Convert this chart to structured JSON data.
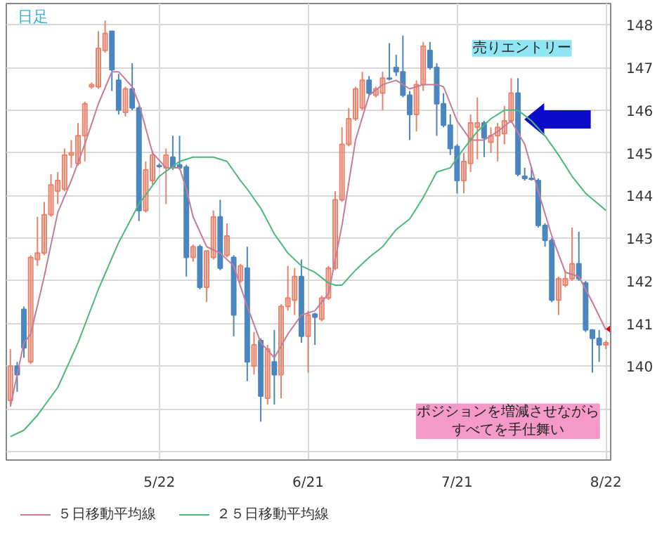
{
  "chart_data": {
    "type": "candlestick",
    "title": "日足",
    "categories": [
      null,
      null,
      null,
      null,
      null,
      null,
      null,
      null,
      null,
      null,
      null,
      null,
      null,
      null,
      null,
      null,
      null,
      null,
      null,
      null,
      null,
      null,
      "5/22",
      null,
      null,
      null,
      null,
      null,
      null,
      null,
      null,
      null,
      null,
      null,
      null,
      null,
      null,
      null,
      null,
      null,
      null,
      null,
      null,
      null,
      "6/21",
      null,
      null,
      null,
      null,
      null,
      null,
      null,
      null,
      null,
      null,
      null,
      null,
      null,
      null,
      null,
      null,
      null,
      null,
      null,
      null,
      null,
      "7/21",
      null,
      null,
      null,
      null,
      null,
      null,
      null,
      null,
      null,
      null,
      null,
      null,
      null,
      null,
      null,
      null,
      null,
      null,
      null,
      null,
      null,
      "8/22"
    ],
    "ohlc": [
      [
        139.2,
        140.4,
        139.1,
        140.0
      ],
      [
        140.0,
        140.1,
        139.4,
        139.8
      ],
      [
        141.33,
        141.4,
        140.2,
        140.43
      ],
      [
        140.1,
        142.6,
        140.05,
        142.55
      ],
      [
        142.5,
        143.5,
        142.35,
        142.65
      ],
      [
        142.65,
        143.85,
        142.6,
        143.55
      ],
      [
        143.55,
        144.5,
        143.5,
        144.25
      ],
      [
        144.1,
        144.55,
        143.8,
        144.35
      ],
      [
        144.15,
        145.1,
        144.1,
        144.95
      ],
      [
        144.95,
        145.3,
        144.65,
        145.0
      ],
      [
        144.75,
        145.7,
        144.7,
        145.4
      ],
      [
        145.4,
        146.2,
        144.8,
        146.15
      ],
      [
        146.55,
        146.65,
        146.5,
        146.6
      ],
      [
        146.55,
        147.85,
        146.5,
        147.45
      ],
      [
        147.4,
        148.1,
        147.35,
        147.8
      ],
      [
        147.85,
        147.85,
        146.45,
        146.95
      ],
      [
        146.7,
        146.85,
        145.9,
        146.0
      ],
      [
        145.95,
        146.55,
        145.85,
        146.5
      ],
      [
        146.5,
        147.1,
        146.0,
        146.05
      ],
      [
        146.05,
        146.1,
        143.4,
        143.65
      ],
      [
        143.65,
        144.8,
        143.6,
        144.6
      ],
      [
        144.35,
        145.05,
        144.25,
        144.95
      ],
      [
        144.7,
        144.75,
        144.65,
        144.68
      ],
      [
        144.65,
        145.1,
        143.8,
        144.95
      ],
      [
        144.9,
        145.4,
        144.6,
        144.67
      ],
      [
        144.72,
        145.4,
        144.6,
        144.65
      ],
      [
        144.67,
        144.72,
        142.1,
        142.55
      ],
      [
        142.55,
        142.85,
        142.45,
        142.8
      ],
      [
        142.8,
        142.85,
        141.8,
        141.85
      ],
      [
        141.85,
        142.7,
        141.5,
        142.7
      ],
      [
        142.55,
        143.65,
        142.5,
        143.5
      ],
      [
        143.5,
        143.9,
        142.25,
        142.3
      ],
      [
        142.6,
        143.35,
        142.55,
        143.05
      ],
      [
        142.55,
        142.6,
        140.7,
        141.2
      ],
      [
        142.0,
        142.4,
        141.95,
        142.35
      ],
      [
        142.3,
        142.8,
        139.65,
        140.1
      ],
      [
        140.0,
        140.8,
        139.8,
        140.5
      ],
      [
        140.6,
        140.65,
        138.7,
        139.3
      ],
      [
        139.25,
        140.5,
        139.1,
        140.4
      ],
      [
        140.1,
        140.85,
        139.1,
        139.8
      ],
      [
        139.8,
        141.45,
        139.25,
        141.4
      ],
      [
        141.4,
        142.35,
        141.3,
        141.6
      ],
      [
        141.55,
        142.3,
        141.2,
        142.1
      ],
      [
        142.1,
        142.5,
        140.55,
        140.7
      ],
      [
        140.7,
        141.3,
        139.85,
        141.2
      ],
      [
        141.22,
        141.25,
        140.5,
        141.15
      ],
      [
        141.1,
        141.65,
        141.05,
        141.6
      ],
      [
        141.6,
        142.35,
        141.55,
        142.3
      ],
      [
        142.3,
        144.1,
        142.25,
        143.9
      ],
      [
        143.9,
        145.6,
        143.85,
        145.2
      ],
      [
        145.2,
        146.05,
        145.15,
        145.8
      ],
      [
        145.8,
        146.55,
        145.75,
        146.5
      ],
      [
        146.05,
        146.9,
        146.0,
        146.7
      ],
      [
        146.7,
        146.8,
        146.35,
        146.4
      ],
      [
        146.35,
        146.55,
        146.3,
        146.5
      ],
      [
        146.4,
        146.9,
        146.0,
        146.75
      ],
      [
        146.75,
        147.57,
        146.7,
        146.73
      ],
      [
        147.0,
        147.3,
        146.8,
        146.9
      ],
      [
        146.9,
        147.75,
        146.3,
        146.35
      ],
      [
        146.35,
        146.45,
        145.3,
        145.9
      ],
      [
        145.9,
        146.7,
        145.5,
        146.6
      ],
      [
        146.6,
        147.6,
        146.45,
        147.5
      ],
      [
        147.4,
        147.6,
        146.95,
        147.0
      ],
      [
        147.0,
        147.1,
        145.4,
        146.15
      ],
      [
        146.15,
        146.4,
        145.6,
        145.65
      ],
      [
        145.65,
        145.9,
        144.95,
        145.1
      ],
      [
        145.15,
        145.2,
        144.05,
        144.35
      ],
      [
        144.35,
        145.0,
        144.05,
        144.8
      ],
      [
        144.75,
        145.9,
        144.55,
        145.7
      ],
      [
        145.6,
        146.3,
        144.85,
        145.7
      ],
      [
        145.7,
        145.75,
        144.9,
        145.35
      ],
      [
        145.25,
        145.6,
        145.0,
        145.4
      ],
      [
        145.4,
        145.7,
        144.8,
        145.6
      ],
      [
        145.45,
        146.1,
        145.2,
        145.75
      ],
      [
        145.75,
        146.75,
        145.7,
        146.4
      ],
      [
        146.4,
        146.75,
        144.45,
        144.5
      ],
      [
        144.45,
        144.65,
        144.35,
        144.4
      ],
      [
        144.4,
        144.65,
        144.35,
        144.38
      ],
      [
        144.35,
        144.4,
        143.25,
        143.3
      ],
      [
        143.3,
        143.35,
        142.8,
        142.95
      ],
      [
        142.95,
        143.0,
        141.5,
        141.55
      ],
      [
        141.55,
        142.1,
        141.2,
        142.05
      ],
      [
        141.9,
        142.25,
        141.85,
        142.05
      ],
      [
        142.05,
        143.25,
        142.0,
        142.4
      ],
      [
        142.4,
        143.15,
        142.0,
        142.05
      ],
      [
        141.95,
        142.0,
        140.8,
        140.85
      ],
      [
        140.85,
        140.85,
        139.85,
        140.65
      ],
      [
        140.65,
        140.85,
        140.1,
        140.5
      ],
      [
        140.5,
        140.6,
        140.4,
        140.55
      ]
    ],
    "colors": [
      "#e8826a",
      "#4a86c0",
      "#4a86c0",
      "#e8826a",
      "#e8826a",
      "#e8826a",
      "#e8826a",
      "#e8826a",
      "#e8826a",
      "#e8826a",
      "#e8826a",
      "#e8826a",
      "#e8826a",
      "#e8826a",
      "#e8826a",
      "#4a86c0",
      "#4a86c0",
      "#e8826a",
      "#4a86c0",
      "#4a86c0",
      "#e8826a",
      "#e8826a",
      "#4a86c0",
      "#e8826a",
      "#4a86c0",
      "#4a86c0",
      "#4a86c0",
      "#e8826a",
      "#4a86c0",
      "#e8826a",
      "#e8826a",
      "#4a86c0",
      "#e8826a",
      "#4a86c0",
      "#e8826a",
      "#4a86c0",
      "#e8826a",
      "#4a86c0",
      "#e8826a",
      "#4a86c0",
      "#e8826a",
      "#e8826a",
      "#e8826a",
      "#4a86c0",
      "#e8826a",
      "#4a86c0",
      "#e8826a",
      "#e8826a",
      "#e8826a",
      "#e8826a",
      "#e8826a",
      "#e8826a",
      "#e8826a",
      "#4a86c0",
      "#e8826a",
      "#e8826a",
      "#4a86c0",
      "#4a86c0",
      "#4a86c0",
      "#4a86c0",
      "#e8826a",
      "#e8826a",
      "#4a86c0",
      "#4a86c0",
      "#4a86c0",
      "#4a86c0",
      "#4a86c0",
      "#e8826a",
      "#e8826a",
      "#e8826a",
      "#4a86c0",
      "#e8826a",
      "#e8826a",
      "#e8826a",
      "#e8826a",
      "#4a86c0",
      "#4a86c0",
      "#4a86c0",
      "#4a86c0",
      "#4a86c0",
      "#4a86c0",
      "#e8826a",
      "#e8826a",
      "#e8826a",
      "#4a86c0",
      "#4a86c0",
      "#4a86c0",
      "#4a86c0",
      "#e8826a"
    ],
    "series": [
      {
        "name": "５日移動平均線",
        "type": "line",
        "color": "#c77a9a",
        "values": [
          139.05,
          null,
          140.55,
          140.75,
          null,
          142.1,
          null,
          143.6,
          null,
          144.35,
          null,
          145.2,
          null,
          146.15,
          null,
          146.9,
          146.9,
          null,
          146.55,
          146.15,
          null,
          145.0,
          null,
          144.65,
          null,
          144.65,
          144.15,
          143.5,
          null,
          142.8,
          null,
          142.65,
          null,
          142.35,
          null,
          141.4,
          null,
          140.55,
          null,
          140.2,
          null,
          140.75,
          null,
          141.2,
          null,
          141.3,
          null,
          141.7,
          null,
          143.3,
          null,
          145.3,
          null,
          146.35,
          null,
          146.6,
          null,
          146.7,
          null,
          146.5,
          null,
          146.6,
          null,
          146.6,
          146.55,
          null,
          145.75,
          null,
          145.3,
          null,
          145.3,
          null,
          145.5,
          null,
          145.75,
          null,
          145.2,
          null,
          144.1,
          null,
          143.05,
          null,
          142.2,
          null,
          142.1,
          null,
          141.5,
          null,
          140.85
        ]
      },
      {
        "name": "２５日移動平均線",
        "type": "line",
        "color": "#4cb87a",
        "values": [
          138.35,
          null,
          138.5,
          null,
          138.85,
          null,
          null,
          139.5,
          null,
          null,
          140.55,
          null,
          null,
          141.8,
          null,
          null,
          142.9,
          null,
          null,
          143.8,
          null,
          null,
          144.45,
          null,
          null,
          144.8,
          null,
          144.9,
          null,
          null,
          144.9,
          null,
          144.8,
          null,
          144.35,
          144.15,
          null,
          143.7,
          null,
          143.1,
          null,
          142.65,
          null,
          142.35,
          null,
          142.2,
          null,
          141.95,
          141.9,
          141.9,
          null,
          142.25,
          null,
          142.55,
          null,
          142.8,
          null,
          143.2,
          null,
          143.45,
          null,
          143.95,
          null,
          144.55,
          null,
          144.65,
          null,
          145.1,
          null,
          145.5,
          null,
          145.8,
          null,
          146.0,
          null,
          146.0,
          null,
          145.75,
          null,
          145.4,
          null,
          144.95,
          null,
          144.45,
          null,
          144.05,
          null,
          null,
          143.65
        ]
      }
    ],
    "ylim": [
      137.8,
      148.5
    ],
    "yticks": [
      {
        "value": 138,
        "label": null
      },
      {
        "value": 139,
        "label": null
      },
      140,
      141,
      142,
      143,
      144,
      145,
      146,
      147,
      148
    ],
    "grid": true,
    "legend": "bottom",
    "annotations": [
      "売りエントリー",
      "ポジションを増減させながらすべてを手仕舞い"
    ]
  }
}
